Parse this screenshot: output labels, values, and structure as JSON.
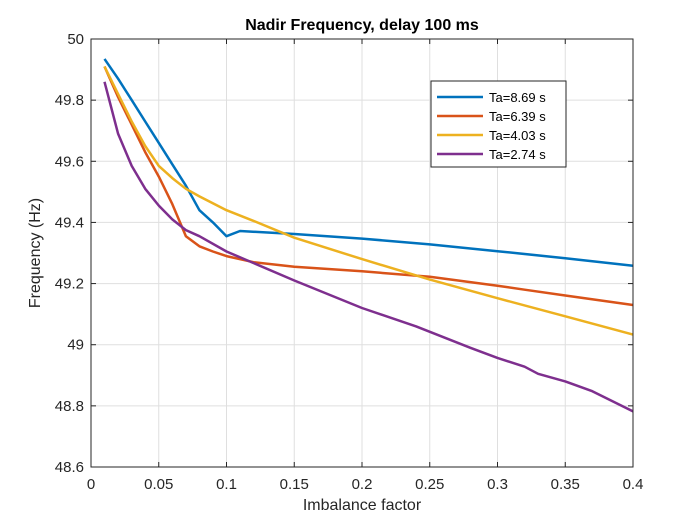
{
  "chart_data": {
    "type": "line",
    "title": "Nadir Frequency, delay 100 ms",
    "xlabel": "Imbalance factor",
    "ylabel": "Frequency (Hz)",
    "xlim": [
      0,
      0.4
    ],
    "ylim": [
      48.6,
      50
    ],
    "xticks": [
      0,
      0.05,
      0.1,
      0.15,
      0.2,
      0.25,
      0.3,
      0.35,
      0.4
    ],
    "xtick_labels": [
      "0",
      "0.05",
      "0.1",
      "0.15",
      "0.2",
      "0.25",
      "0.3",
      "0.35",
      "0.4"
    ],
    "yticks": [
      48.6,
      48.8,
      49,
      49.2,
      49.4,
      49.6,
      49.8,
      50
    ],
    "ytick_labels": [
      "48.6",
      "48.8",
      "49",
      "49.2",
      "49.4",
      "49.6",
      "49.8",
      "50"
    ],
    "grid": true,
    "legend_position": "top-right",
    "series": [
      {
        "name": "Ta=8.69 s",
        "color": "#0072BD",
        "x": [
          0.01,
          0.02,
          0.03,
          0.04,
          0.05,
          0.06,
          0.07,
          0.08,
          0.09,
          0.1,
          0.11,
          0.15,
          0.2,
          0.25,
          0.3,
          0.35,
          0.4
        ],
        "y": [
          49.935,
          49.87,
          49.8,
          49.73,
          49.66,
          49.59,
          49.52,
          49.44,
          49.4,
          49.355,
          49.372,
          49.362,
          49.347,
          49.328,
          49.306,
          49.283,
          49.258
        ]
      },
      {
        "name": "Ta=6.39 s",
        "color": "#D95319",
        "x": [
          0.01,
          0.02,
          0.03,
          0.04,
          0.05,
          0.06,
          0.07,
          0.08,
          0.09,
          0.1,
          0.12,
          0.15,
          0.2,
          0.25,
          0.3,
          0.32,
          0.35,
          0.4
        ],
        "y": [
          49.91,
          49.81,
          49.72,
          49.63,
          49.55,
          49.46,
          49.355,
          49.322,
          49.305,
          49.29,
          49.27,
          49.255,
          49.24,
          49.222,
          49.193,
          49.18,
          49.161,
          49.13
        ]
      },
      {
        "name": "Ta=4.03 s",
        "color": "#EDB120",
        "x": [
          0.01,
          0.02,
          0.03,
          0.04,
          0.05,
          0.06,
          0.07,
          0.08,
          0.1,
          0.12,
          0.15,
          0.2,
          0.25,
          0.3,
          0.35,
          0.4
        ],
        "y": [
          49.91,
          49.82,
          49.73,
          49.65,
          49.585,
          49.545,
          49.51,
          49.485,
          49.44,
          49.405,
          49.35,
          49.28,
          49.213,
          49.152,
          49.093,
          49.033
        ]
      },
      {
        "name": "Ta=2.74 s",
        "color": "#7E2F8E",
        "x": [
          0.01,
          0.02,
          0.03,
          0.04,
          0.05,
          0.06,
          0.07,
          0.08,
          0.1,
          0.15,
          0.2,
          0.24,
          0.28,
          0.3,
          0.32,
          0.33,
          0.35,
          0.37,
          0.4
        ],
        "y": [
          49.86,
          49.69,
          49.585,
          49.51,
          49.455,
          49.41,
          49.375,
          49.355,
          49.305,
          49.21,
          49.12,
          49.06,
          48.99,
          48.957,
          48.928,
          48.905,
          48.88,
          48.848,
          48.782
        ]
      }
    ]
  }
}
